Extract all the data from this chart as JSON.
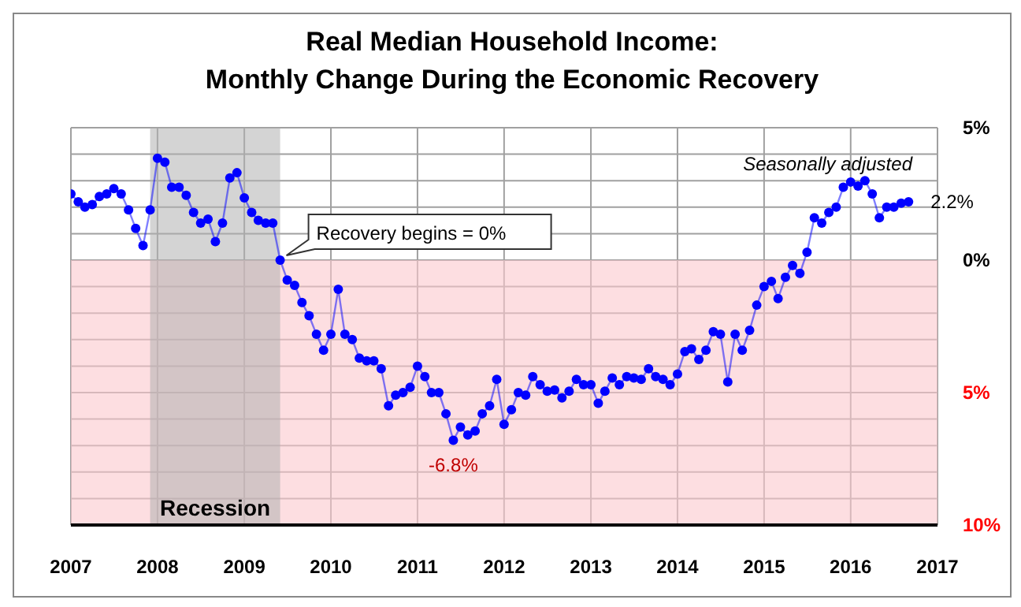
{
  "chart_data": {
    "type": "line",
    "title": "Real Median Household Income:\nMonthly Change During the Economic Recovery",
    "x": [
      "2007-01",
      "2007-02",
      "2007-03",
      "2007-04",
      "2007-05",
      "2007-06",
      "2007-07",
      "2007-08",
      "2007-09",
      "2007-10",
      "2007-11",
      "2007-12",
      "2008-01",
      "2008-02",
      "2008-03",
      "2008-04",
      "2008-05",
      "2008-06",
      "2008-07",
      "2008-08",
      "2008-09",
      "2008-10",
      "2008-11",
      "2008-12",
      "2009-01",
      "2009-02",
      "2009-03",
      "2009-04",
      "2009-05",
      "2009-06",
      "2009-07",
      "2009-08",
      "2009-09",
      "2009-10",
      "2009-11",
      "2009-12",
      "2010-01",
      "2010-02",
      "2010-03",
      "2010-04",
      "2010-05",
      "2010-06",
      "2010-07",
      "2010-08",
      "2010-09",
      "2010-10",
      "2010-11",
      "2010-12",
      "2011-01",
      "2011-02",
      "2011-03",
      "2011-04",
      "2011-05",
      "2011-06",
      "2011-07",
      "2011-08",
      "2011-09",
      "2011-10",
      "2011-11",
      "2011-12",
      "2012-01",
      "2012-02",
      "2012-03",
      "2012-04",
      "2012-05",
      "2012-06",
      "2012-07",
      "2012-08",
      "2012-09",
      "2012-10",
      "2012-11",
      "2012-12",
      "2013-01",
      "2013-02",
      "2013-03",
      "2013-04",
      "2013-05",
      "2013-06",
      "2013-07",
      "2013-08",
      "2013-09",
      "2013-10",
      "2013-11",
      "2013-12",
      "2014-01",
      "2014-02",
      "2014-03",
      "2014-04",
      "2014-05",
      "2014-06",
      "2014-07",
      "2014-08",
      "2014-09",
      "2014-10",
      "2014-11",
      "2014-12",
      "2015-01",
      "2015-02",
      "2015-03",
      "2015-04",
      "2015-05",
      "2015-06",
      "2015-07",
      "2015-08",
      "2015-09",
      "2015-10",
      "2015-11",
      "2015-12",
      "2016-01",
      "2016-02",
      "2016-03",
      "2016-04",
      "2016-05",
      "2016-06",
      "2016-07",
      "2016-08",
      "2016-09"
    ],
    "series": [
      {
        "color": "#0000ff",
        "values": [
          2.5,
          2.2,
          2.0,
          2.1,
          2.4,
          2.5,
          2.7,
          2.5,
          1.9,
          1.2,
          0.55,
          1.9,
          3.85,
          3.7,
          2.75,
          2.75,
          2.45,
          1.8,
          1.4,
          1.55,
          0.7,
          1.4,
          3.1,
          3.3,
          2.35,
          1.8,
          1.5,
          1.4,
          1.4,
          0,
          -0.75,
          -0.95,
          -1.6,
          -2.1,
          -2.8,
          -3.4,
          -2.8,
          -1.1,
          -2.8,
          -3.0,
          -3.7,
          -3.8,
          -3.8,
          -4.1,
          -5.5,
          -5.1,
          -5.0,
          -4.8,
          -4.0,
          -4.4,
          -5.0,
          -5.0,
          -5.8,
          -6.8,
          -6.3,
          -6.6,
          -6.45,
          -5.8,
          -5.5,
          -4.5,
          -6.2,
          -5.65,
          -5.0,
          -5.1,
          -4.4,
          -4.7,
          -4.95,
          -4.9,
          -5.2,
          -4.95,
          -4.5,
          -4.7,
          -4.7,
          -5.4,
          -4.95,
          -4.45,
          -4.7,
          -4.4,
          -4.45,
          -4.5,
          -4.1,
          -4.4,
          -4.5,
          -4.7,
          -4.3,
          -3.45,
          -3.35,
          -3.75,
          -3.4,
          -2.7,
          -2.8,
          -4.6,
          -2.8,
          -3.4,
          -2.65,
          -1.7,
          -1.0,
          -0.8,
          -1.45,
          -0.65,
          -0.2,
          -0.5,
          0.3,
          1.6,
          1.4,
          1.8,
          2.0,
          2.75,
          2.95,
          2.8,
          3.0,
          2.5,
          1.6,
          2.0,
          2.0,
          2.15,
          2.2
        ]
      }
    ],
    "xlim": [
      "2007",
      "2017"
    ],
    "xticks": [
      "2007",
      "2008",
      "2009",
      "2010",
      "2011",
      "2012",
      "2013",
      "2014",
      "2015",
      "2016",
      "2017"
    ],
    "ylim": [
      -10,
      5
    ],
    "yticks": [
      {
        "value": 5,
        "label": "5%"
      },
      {
        "value": 4,
        "label": null
      },
      {
        "value": 3,
        "label": null
      },
      {
        "value": 2,
        "label": null
      },
      {
        "value": 1,
        "label": null
      },
      {
        "value": 0,
        "label": "0%"
      },
      {
        "value": -1,
        "label": null
      },
      {
        "value": -2,
        "label": null
      },
      {
        "value": -3,
        "label": null
      },
      {
        "value": -4,
        "label": null
      },
      {
        "value": -5,
        "label": "5%"
      },
      {
        "value": -6,
        "label": null
      },
      {
        "value": -7,
        "label": null
      },
      {
        "value": -8,
        "label": null
      },
      {
        "value": -9,
        "label": null
      },
      {
        "value": -10,
        "label": "10%"
      }
    ],
    "bands": [
      {
        "axis": "y",
        "from": -10,
        "to": 0,
        "color": "#fbc8cd"
      },
      {
        "axis": "x",
        "from": "2007-12",
        "to": "2009-06",
        "label": "Recession",
        "color": "#b0b0b0"
      }
    ],
    "annotations": [
      {
        "text": "Recovery begins = 0%",
        "x": "2009-06",
        "y": 0
      },
      {
        "text": "-6.8%",
        "x": "2011-06",
        "y": -6.8
      },
      {
        "text": "2.2%",
        "x": "2016-09",
        "y": 2.2
      },
      "Seasonally adjusted"
    ],
    "grid": true,
    "legend": false,
    "marker": "circle",
    "line_style": "solid"
  }
}
